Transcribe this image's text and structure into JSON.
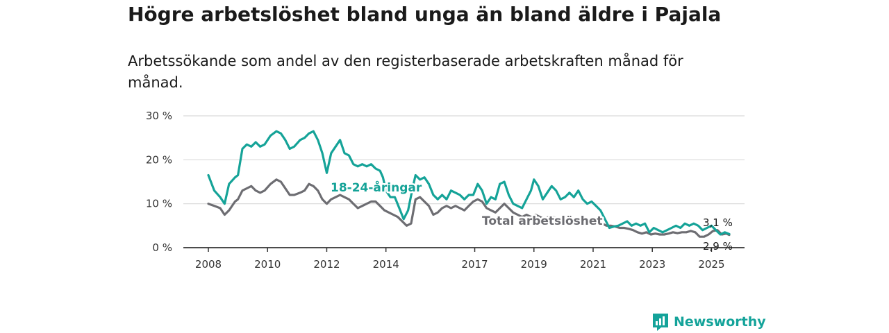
{
  "title": "Högre arbetslöshet bland unga än bland äldre i Pajala",
  "subtitle": "Arbetssökande som andel av den registerbaserade arbetskraften månad för månad.",
  "logo_text": "Newsworthy",
  "colors": {
    "youth": "#15a398",
    "total": "#6d6d72",
    "grid": "#d9d9d9",
    "axis": "#333333",
    "logo": "#14a39a"
  },
  "chart_data": {
    "type": "line",
    "title": "Högre arbetslöshet bland unga än bland äldre i Pajala",
    "subtitle": "Arbetssökande som andel av den registerbaserade arbetskraften månad för månad.",
    "xlabel": "",
    "ylabel": "",
    "xlim": [
      2008.0,
      2025.6
    ],
    "ylim": [
      0,
      30
    ],
    "x_ticks": [
      2008,
      2010,
      2012,
      2014,
      2017,
      2019,
      2021,
      2023,
      2025
    ],
    "x_tick_labels": [
      "2008",
      "2010",
      "2012",
      "2014",
      "2017",
      "2019",
      "2021",
      "2023",
      "2025"
    ],
    "y_ticks": [
      0,
      10,
      20,
      30
    ],
    "y_tick_labels": [
      "0 %",
      "10 %",
      "20 %",
      "30 %"
    ],
    "grid": "horizontal",
    "legend": "inline labels",
    "series": [
      {
        "name": "18-24-åringar",
        "end_label": "3,1 %",
        "points": [
          [
            2008.0,
            16.5
          ],
          [
            2008.2,
            13.0
          ],
          [
            2008.4,
            11.5
          ],
          [
            2008.55,
            10.0
          ],
          [
            2008.7,
            14.5
          ],
          [
            2008.9,
            16.0
          ],
          [
            2009.0,
            16.5
          ],
          [
            2009.15,
            22.5
          ],
          [
            2009.3,
            23.5
          ],
          [
            2009.45,
            23.0
          ],
          [
            2009.6,
            24.0
          ],
          [
            2009.75,
            23.0
          ],
          [
            2009.9,
            23.5
          ],
          [
            2010.1,
            25.5
          ],
          [
            2010.3,
            26.5
          ],
          [
            2010.45,
            26.0
          ],
          [
            2010.6,
            24.5
          ],
          [
            2010.75,
            22.5
          ],
          [
            2010.9,
            23.0
          ],
          [
            2011.1,
            24.5
          ],
          [
            2011.25,
            25.0
          ],
          [
            2011.4,
            26.0
          ],
          [
            2011.55,
            26.5
          ],
          [
            2011.7,
            24.5
          ],
          [
            2011.85,
            21.5
          ],
          [
            2012.0,
            17.0
          ],
          [
            2012.15,
            21.5
          ],
          [
            2012.3,
            23.0
          ],
          [
            2012.45,
            24.5
          ],
          [
            2012.6,
            21.5
          ],
          [
            2012.75,
            21.0
          ],
          [
            2012.9,
            19.0
          ],
          [
            2013.05,
            18.5
          ],
          [
            2013.2,
            19.0
          ],
          [
            2013.35,
            18.5
          ],
          [
            2013.5,
            19.0
          ],
          [
            2013.65,
            18.0
          ],
          [
            2013.8,
            17.5
          ],
          [
            2013.9,
            16.0
          ],
          [
            2014.0,
            13.0
          ],
          [
            2014.15,
            11.5
          ],
          [
            2014.3,
            11.5
          ],
          [
            2014.45,
            9.0
          ],
          [
            2014.6,
            6.5
          ],
          [
            2014.75,
            8.5
          ],
          [
            2014.9,
            13.5
          ],
          [
            2015.0,
            16.5
          ],
          [
            2015.15,
            15.5
          ],
          [
            2015.3,
            16.0
          ],
          [
            2015.45,
            14.5
          ],
          [
            2015.6,
            12.0
          ],
          [
            2015.75,
            11.0
          ],
          [
            2015.9,
            12.0
          ],
          [
            2016.05,
            11.0
          ],
          [
            2016.2,
            13.0
          ],
          [
            2016.35,
            12.5
          ],
          [
            2016.5,
            12.0
          ],
          [
            2016.65,
            11.0
          ],
          [
            2016.8,
            12.0
          ],
          [
            2016.95,
            12.0
          ],
          [
            2017.1,
            14.5
          ],
          [
            2017.25,
            13.0
          ],
          [
            2017.4,
            10.0
          ],
          [
            2017.55,
            11.5
          ],
          [
            2017.7,
            11.0
          ],
          [
            2017.85,
            14.5
          ],
          [
            2018.0,
            15.0
          ],
          [
            2018.15,
            12.0
          ],
          [
            2018.3,
            10.0
          ],
          [
            2018.45,
            9.5
          ],
          [
            2018.6,
            9.0
          ],
          [
            2018.75,
            11.0
          ],
          [
            2018.9,
            13.0
          ],
          [
            2019.0,
            15.5
          ],
          [
            2019.15,
            14.0
          ],
          [
            2019.3,
            11.0
          ],
          [
            2019.45,
            12.5
          ],
          [
            2019.6,
            14.0
          ],
          [
            2019.75,
            13.0
          ],
          [
            2019.9,
            11.0
          ],
          [
            2020.05,
            11.5
          ],
          [
            2020.2,
            12.5
          ],
          [
            2020.35,
            11.5
          ],
          [
            2020.5,
            13.0
          ],
          [
            2020.65,
            11.0
          ],
          [
            2020.8,
            10.0
          ],
          [
            2020.95,
            10.5
          ],
          [
            2021.1,
            9.5
          ],
          [
            2021.25,
            8.5
          ],
          [
            2021.4,
            6.5
          ],
          [
            2021.55,
            4.5
          ],
          [
            2021.7,
            4.8
          ],
          [
            2021.85,
            5.0
          ],
          [
            2022.0,
            5.5
          ],
          [
            2022.15,
            6.0
          ],
          [
            2022.3,
            5.0
          ],
          [
            2022.45,
            5.5
          ],
          [
            2022.6,
            5.0
          ],
          [
            2022.75,
            5.5
          ],
          [
            2022.9,
            3.5
          ],
          [
            2023.05,
            4.5
          ],
          [
            2023.2,
            4.0
          ],
          [
            2023.35,
            3.5
          ],
          [
            2023.5,
            4.0
          ],
          [
            2023.65,
            4.5
          ],
          [
            2023.8,
            5.0
          ],
          [
            2023.95,
            4.5
          ],
          [
            2024.1,
            5.5
          ],
          [
            2024.25,
            5.0
          ],
          [
            2024.4,
            5.5
          ],
          [
            2024.55,
            5.0
          ],
          [
            2024.7,
            4.0
          ],
          [
            2024.85,
            4.5
          ],
          [
            2025.0,
            5.0
          ],
          [
            2025.15,
            4.0
          ],
          [
            2025.3,
            3.0
          ],
          [
            2025.45,
            3.5
          ],
          [
            2025.6,
            3.1
          ]
        ]
      },
      {
        "name": "Total arbetslöshet",
        "end_label": "2,9 %",
        "points": [
          [
            2008.0,
            10.0
          ],
          [
            2008.2,
            9.5
          ],
          [
            2008.4,
            9.0
          ],
          [
            2008.55,
            7.5
          ],
          [
            2008.7,
            8.5
          ],
          [
            2008.9,
            10.5
          ],
          [
            2009.0,
            11.0
          ],
          [
            2009.15,
            13.0
          ],
          [
            2009.3,
            13.5
          ],
          [
            2009.45,
            14.0
          ],
          [
            2009.6,
            13.0
          ],
          [
            2009.75,
            12.5
          ],
          [
            2009.9,
            13.0
          ],
          [
            2010.1,
            14.5
          ],
          [
            2010.3,
            15.5
          ],
          [
            2010.45,
            15.0
          ],
          [
            2010.6,
            13.5
          ],
          [
            2010.75,
            12.0
          ],
          [
            2010.9,
            12.0
          ],
          [
            2011.1,
            12.5
          ],
          [
            2011.25,
            13.0
          ],
          [
            2011.4,
            14.5
          ],
          [
            2011.55,
            14.0
          ],
          [
            2011.7,
            13.0
          ],
          [
            2011.85,
            11.0
          ],
          [
            2012.0,
            10.0
          ],
          [
            2012.15,
            11.0
          ],
          [
            2012.3,
            11.5
          ],
          [
            2012.45,
            12.0
          ],
          [
            2012.6,
            11.5
          ],
          [
            2012.75,
            11.0
          ],
          [
            2012.9,
            10.0
          ],
          [
            2013.05,
            9.0
          ],
          [
            2013.2,
            9.5
          ],
          [
            2013.35,
            10.0
          ],
          [
            2013.5,
            10.5
          ],
          [
            2013.65,
            10.5
          ],
          [
            2013.8,
            9.5
          ],
          [
            2013.95,
            8.5
          ],
          [
            2014.1,
            8.0
          ],
          [
            2014.25,
            7.5
          ],
          [
            2014.4,
            7.0
          ],
          [
            2014.55,
            6.0
          ],
          [
            2014.7,
            5.0
          ],
          [
            2014.85,
            5.5
          ],
          [
            2015.0,
            11.0
          ],
          [
            2015.15,
            11.5
          ],
          [
            2015.3,
            10.5
          ],
          [
            2015.45,
            9.5
          ],
          [
            2015.6,
            7.5
          ],
          [
            2015.75,
            8.0
          ],
          [
            2015.9,
            9.0
          ],
          [
            2016.05,
            9.5
          ],
          [
            2016.2,
            9.0
          ],
          [
            2016.35,
            9.5
          ],
          [
            2016.5,
            9.0
          ],
          [
            2016.65,
            8.5
          ],
          [
            2016.8,
            9.5
          ],
          [
            2016.95,
            10.5
          ],
          [
            2017.1,
            11.0
          ],
          [
            2017.25,
            10.5
          ],
          [
            2017.4,
            9.0
          ],
          [
            2017.55,
            8.5
          ],
          [
            2017.7,
            8.0
          ],
          [
            2017.85,
            9.0
          ],
          [
            2018.0,
            10.0
          ],
          [
            2018.15,
            9.0
          ],
          [
            2018.3,
            8.0
          ],
          [
            2018.45,
            7.5
          ],
          [
            2018.6,
            7.0
          ],
          [
            2018.75,
            7.5
          ],
          [
            2018.9,
            7.0
          ],
          [
            2019.05,
            7.5
          ],
          [
            2019.2,
            7.0
          ],
          [
            2019.35,
            6.5
          ],
          [
            2019.5,
            7.0
          ],
          [
            2019.65,
            7.0
          ],
          [
            2019.8,
            6.5
          ],
          [
            2019.95,
            6.5
          ],
          [
            2020.1,
            7.0
          ],
          [
            2020.25,
            6.5
          ],
          [
            2020.4,
            6.0
          ],
          [
            2020.55,
            6.5
          ],
          [
            2020.7,
            6.0
          ],
          [
            2020.85,
            6.0
          ],
          [
            2021.0,
            6.5
          ],
          [
            2021.15,
            6.0
          ],
          [
            2021.3,
            5.5
          ],
          [
            2021.45,
            5.0
          ],
          [
            2021.6,
            5.0
          ],
          [
            2021.75,
            4.8
          ],
          [
            2021.9,
            4.5
          ],
          [
            2022.05,
            4.5
          ],
          [
            2022.2,
            4.3
          ],
          [
            2022.35,
            4.0
          ],
          [
            2022.5,
            3.5
          ],
          [
            2022.65,
            3.2
          ],
          [
            2022.8,
            3.5
          ],
          [
            2022.95,
            3.0
          ],
          [
            2023.1,
            3.2
          ],
          [
            2023.25,
            3.0
          ],
          [
            2023.4,
            3.0
          ],
          [
            2023.55,
            3.2
          ],
          [
            2023.7,
            3.5
          ],
          [
            2023.85,
            3.3
          ],
          [
            2024.0,
            3.5
          ],
          [
            2024.15,
            3.5
          ],
          [
            2024.3,
            3.8
          ],
          [
            2024.45,
            3.5
          ],
          [
            2024.6,
            2.5
          ],
          [
            2024.75,
            2.5
          ],
          [
            2024.9,
            3.0
          ],
          [
            2025.05,
            3.8
          ],
          [
            2025.2,
            4.0
          ],
          [
            2025.35,
            3.0
          ],
          [
            2025.5,
            3.2
          ],
          [
            2025.6,
            2.9
          ]
        ]
      }
    ]
  }
}
